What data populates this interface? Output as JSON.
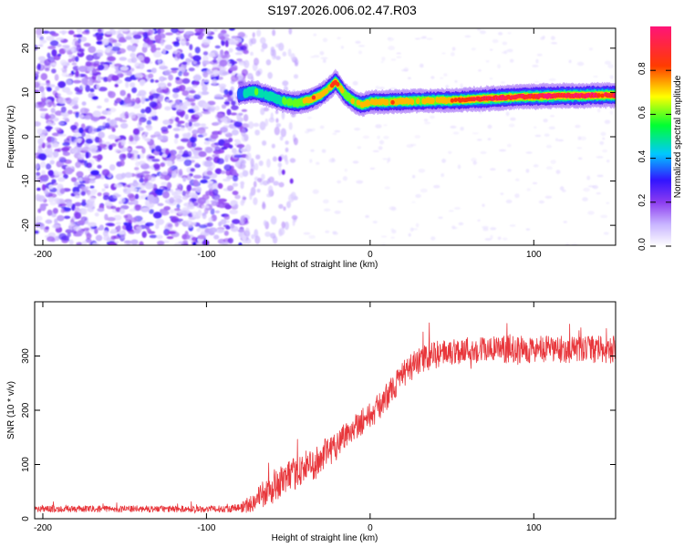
{
  "title": "S197.2026.006.02.47.R03",
  "chart_data": [
    {
      "type": "heatmap",
      "panel": "spectrogram",
      "xlabel": "Height of straight line (km)",
      "ylabel": "Frequency (Hz)",
      "xlim": [
        -205,
        150
      ],
      "ylim": [
        -24.5,
        24.5
      ],
      "x_ticks": [
        -200,
        -100,
        0,
        100
      ],
      "y_ticks": [
        -20,
        -10,
        0,
        10,
        20
      ],
      "colorbar": {
        "label": "Normalized spectral amplitude",
        "range": [
          0,
          1
        ],
        "ticks": [
          0.0,
          0.2,
          0.4,
          0.6,
          0.8
        ],
        "tick_labels": [
          "0.0",
          "0.2",
          "0.4",
          "0.6",
          "0.8"
        ],
        "colors": [
          "#ffffff",
          "#c8b4ff",
          "#8c3cf0",
          "#3214ff",
          "#00c8ff",
          "#00ff32",
          "#ffff00",
          "#ff3c00",
          "#ff1478"
        ]
      },
      "noise_region": {
        "x_range": [
          -205,
          -78
        ],
        "typical_amplitude": [
          0.05,
          0.3
        ]
      },
      "signal_track": {
        "x": [
          -80,
          -75,
          -70,
          -65,
          -60,
          -55,
          -50,
          -45,
          -40,
          -35,
          -30,
          -25,
          -21,
          -18,
          -15,
          -10,
          -5,
          0,
          10,
          20,
          30,
          40,
          50,
          60,
          70,
          80,
          90,
          100,
          110,
          120,
          130,
          140,
          150
        ],
        "frequency_hz": [
          9.5,
          10.0,
          10.2,
          9.5,
          9.0,
          8.2,
          7.8,
          7.6,
          8.0,
          8.6,
          9.5,
          11.0,
          12.4,
          11.0,
          9.5,
          8.0,
          7.2,
          7.8,
          7.9,
          8.0,
          8.1,
          8.2,
          8.2,
          8.4,
          8.6,
          8.8,
          9.0,
          9.1,
          9.2,
          9.3,
          9.3,
          9.4,
          9.4
        ],
        "amplitude": [
          0.35,
          0.45,
          0.5,
          0.45,
          0.45,
          0.5,
          0.55,
          0.6,
          0.72,
          0.78,
          0.75,
          0.7,
          0.85,
          0.7,
          0.6,
          0.62,
          0.68,
          0.7,
          0.75,
          0.75,
          0.7,
          0.72,
          0.75,
          0.8,
          0.9,
          0.95,
          0.85,
          0.95,
          0.95,
          0.9,
          0.92,
          0.9,
          0.9
        ]
      }
    },
    {
      "type": "line",
      "panel": "snr",
      "xlabel": "Height of straight line (km)",
      "ylabel": "SNR (10 * v/v)",
      "xlim": [
        -205,
        150
      ],
      "ylim": [
        0,
        400
      ],
      "x_ticks": [
        -200,
        -100,
        0,
        100
      ],
      "y_ticks": [
        0,
        100,
        200,
        300
      ],
      "color": "#e8373c",
      "series": [
        {
          "name": "SNR",
          "x": [
            -205,
            -180,
            -160,
            -140,
            -120,
            -100,
            -90,
            -80,
            -75,
            -70,
            -65,
            -60,
            -55,
            -50,
            -45,
            -40,
            -35,
            -30,
            -25,
            -20,
            -15,
            -10,
            -5,
            0,
            5,
            10,
            15,
            20,
            25,
            30,
            35,
            40,
            50,
            60,
            70,
            80,
            90,
            100,
            110,
            120,
            130,
            140,
            150
          ],
          "y": [
            18,
            18,
            18,
            18,
            18,
            18,
            18,
            20,
            25,
            35,
            45,
            50,
            70,
            75,
            85,
            95,
            100,
            110,
            125,
            140,
            155,
            170,
            180,
            190,
            205,
            225,
            245,
            265,
            280,
            290,
            298,
            302,
            308,
            312,
            312,
            312,
            312,
            312,
            312,
            312,
            312,
            312,
            312
          ],
          "noise": [
            6,
            6,
            6,
            6,
            6,
            6,
            6,
            8,
            15,
            20,
            25,
            25,
            30,
            30,
            30,
            30,
            30,
            30,
            30,
            30,
            25,
            25,
            25,
            25,
            25,
            25,
            25,
            25,
            25,
            25,
            25,
            25,
            25,
            25,
            25,
            25,
            25,
            25,
            25,
            25,
            25,
            25,
            25
          ]
        }
      ]
    }
  ]
}
